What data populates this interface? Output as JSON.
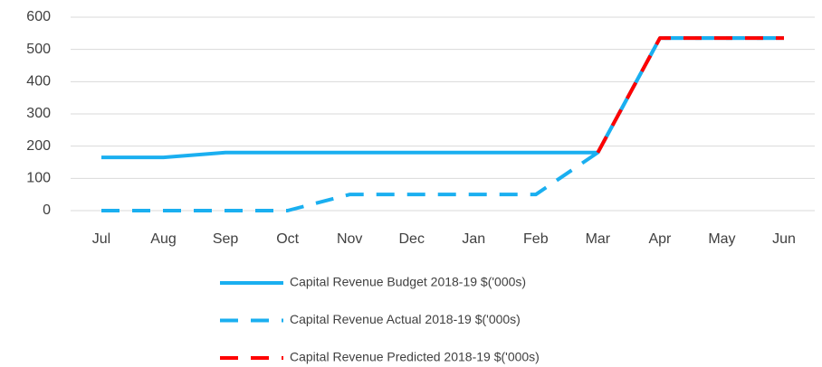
{
  "chart_data": {
    "type": "line",
    "categories": [
      "Jul",
      "Aug",
      "Sep",
      "Oct",
      "Nov",
      "Dec",
      "Jan",
      "Feb",
      "Mar",
      "Apr",
      "May",
      "Jun"
    ],
    "series": [
      {
        "name": "Capital Revenue Budget 2018-19 $('000s)",
        "color": "#1aaff0",
        "style": "solid",
        "values": [
          165,
          165,
          180,
          180,
          180,
          180,
          180,
          180,
          180,
          535,
          535,
          535
        ]
      },
      {
        "name": "Capital Revenue Actual 2018-19 $('000s)",
        "color": "#1aaff0",
        "style": "dashed",
        "values": [
          0,
          0,
          0,
          0,
          50,
          50,
          50,
          50,
          180,
          535,
          535,
          535
        ]
      },
      {
        "name": "Capital Revenue Predicted 2018-19 $('000s)",
        "color": "#ff0000",
        "style": "dashed",
        "values": [
          null,
          null,
          null,
          null,
          null,
          null,
          null,
          null,
          180,
          535,
          535,
          535
        ]
      }
    ],
    "ylim": [
      0,
      600
    ],
    "yticks": [
      0,
      100,
      200,
      300,
      400,
      500,
      600
    ],
    "grid": true
  }
}
